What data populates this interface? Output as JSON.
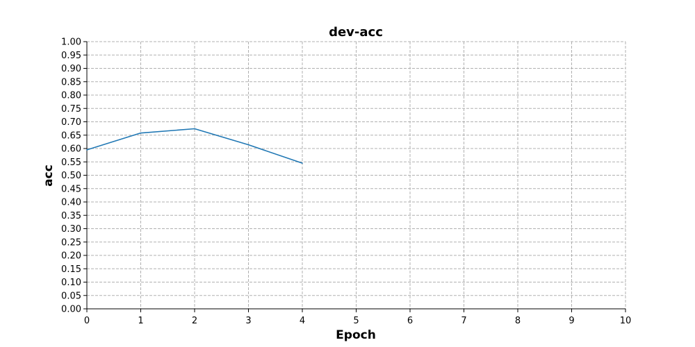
{
  "chart_data": {
    "type": "line",
    "title": "dev-acc",
    "xlabel": "Epoch",
    "ylabel": "acc",
    "xlim": [
      0,
      10
    ],
    "ylim": [
      0,
      1
    ],
    "x_ticks": [
      "0",
      "1",
      "2",
      "3",
      "4",
      "5",
      "6",
      "7",
      "8",
      "9",
      "10"
    ],
    "y_ticks": [
      "0.00",
      "0.05",
      "0.10",
      "0.15",
      "0.20",
      "0.25",
      "0.30",
      "0.35",
      "0.40",
      "0.45",
      "0.50",
      "0.55",
      "0.60",
      "0.65",
      "0.70",
      "0.75",
      "0.80",
      "0.85",
      "0.90",
      "0.95",
      "1.00"
    ],
    "grid": true,
    "series": [
      {
        "color": "#1f77b4",
        "x": [
          0,
          1,
          2,
          3,
          4
        ],
        "y": [
          0.595,
          0.658,
          0.674,
          0.614,
          0.545
        ]
      }
    ]
  }
}
